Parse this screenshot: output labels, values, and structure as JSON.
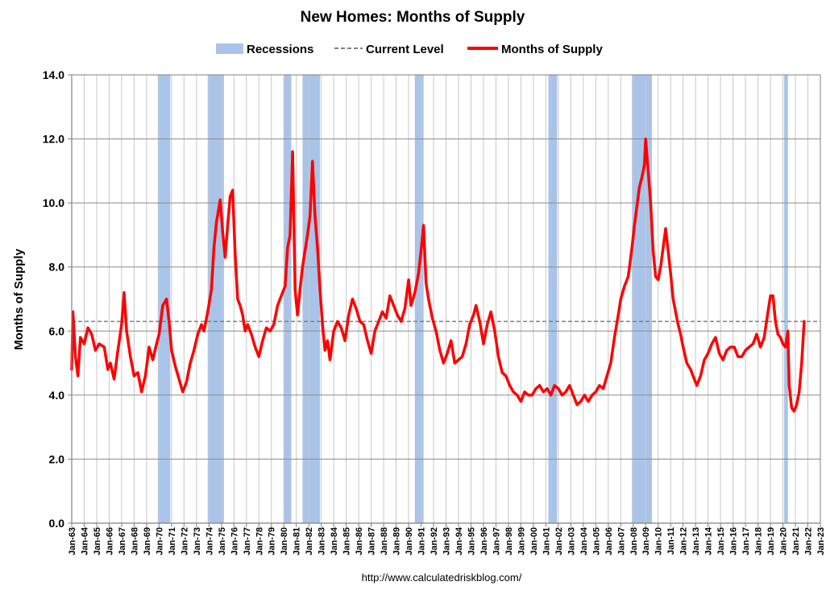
{
  "chart_data": {
    "type": "line",
    "title": "New Homes: Months of Supply",
    "ylabel": "Months of Supply",
    "xlabel": "",
    "source": "http://www.calculatedriskblog.com/",
    "ylim": [
      0,
      14
    ],
    "yticks": [
      "0.0",
      "2.0",
      "4.0",
      "6.0",
      "8.0",
      "10.0",
      "12.0",
      "14.0"
    ],
    "xlim": [
      1963,
      2023
    ],
    "x_tick_labels": [
      "Jan-63",
      "Jan-64",
      "Jan-65",
      "Jan-66",
      "Jan-67",
      "Jan-68",
      "Jan-69",
      "Jan-70",
      "Jan-71",
      "Jan-72",
      "Jan-73",
      "Jan-74",
      "Jan-75",
      "Jan-76",
      "Jan-77",
      "Jan-78",
      "Jan-79",
      "Jan-80",
      "Jan-81",
      "Jan-82",
      "Jan-83",
      "Jan-84",
      "Jan-85",
      "Jan-86",
      "Jan-87",
      "Jan-88",
      "Jan-89",
      "Jan-90",
      "Jan-91",
      "Jan-92",
      "Jan-93",
      "Jan-94",
      "Jan-95",
      "Jan-96",
      "Jan-97",
      "Jan-98",
      "Jan-99",
      "Jan-00",
      "Jan-01",
      "Jan-02",
      "Jan-03",
      "Jan-04",
      "Jan-05",
      "Jan-06",
      "Jan-07",
      "Jan-08",
      "Jan-09",
      "Jan-10",
      "Jan-11",
      "Jan-12",
      "Jan-13",
      "Jan-14",
      "Jan-15",
      "Jan-16",
      "Jan-17",
      "Jan-18",
      "Jan-19",
      "Jan-20",
      "Jan-21",
      "Jan-22",
      "Jan-23"
    ],
    "grid": true,
    "legend": {
      "placement": "top-center",
      "items": [
        {
          "label": "Recessions",
          "kind": "band",
          "color": "#a9c4e8"
        },
        {
          "label": "Current Level",
          "kind": "dashed",
          "color": "#808080"
        },
        {
          "label": "Months of Supply",
          "kind": "line",
          "color": "#ff0000"
        }
      ]
    },
    "current_level": 6.3,
    "recessions": [
      [
        1969.9,
        1970.9
      ],
      [
        1973.9,
        1975.2
      ],
      [
        1980.0,
        1980.6
      ],
      [
        1981.5,
        1982.9
      ],
      [
        1990.5,
        1991.2
      ],
      [
        2001.2,
        2001.9
      ],
      [
        2007.9,
        2009.5
      ],
      [
        2020.1,
        2020.4
      ]
    ],
    "series": [
      {
        "name": "Months of Supply",
        "color": "#ff0000",
        "points": [
          [
            1963.0,
            4.8
          ],
          [
            1963.1,
            6.6
          ],
          [
            1963.3,
            5.2
          ],
          [
            1963.5,
            4.6
          ],
          [
            1963.7,
            5.8
          ],
          [
            1964.0,
            5.6
          ],
          [
            1964.3,
            6.1
          ],
          [
            1964.6,
            5.9
          ],
          [
            1964.9,
            5.4
          ],
          [
            1965.2,
            5.6
          ],
          [
            1965.6,
            5.5
          ],
          [
            1965.9,
            4.8
          ],
          [
            1966.1,
            5.0
          ],
          [
            1966.4,
            4.5
          ],
          [
            1966.7,
            5.4
          ],
          [
            1967.0,
            6.2
          ],
          [
            1967.2,
            7.2
          ],
          [
            1967.4,
            6.0
          ],
          [
            1967.7,
            5.2
          ],
          [
            1968.0,
            4.6
          ],
          [
            1968.3,
            4.7
          ],
          [
            1968.6,
            4.1
          ],
          [
            1968.9,
            4.6
          ],
          [
            1969.2,
            5.5
          ],
          [
            1969.5,
            5.1
          ],
          [
            1969.8,
            5.6
          ],
          [
            1970.0,
            5.9
          ],
          [
            1970.3,
            6.8
          ],
          [
            1970.6,
            7.0
          ],
          [
            1970.8,
            6.3
          ],
          [
            1971.0,
            5.4
          ],
          [
            1971.3,
            4.9
          ],
          [
            1971.6,
            4.5
          ],
          [
            1971.9,
            4.1
          ],
          [
            1972.2,
            4.4
          ],
          [
            1972.5,
            5.0
          ],
          [
            1972.8,
            5.4
          ],
          [
            1973.1,
            5.9
          ],
          [
            1973.4,
            6.2
          ],
          [
            1973.6,
            6.0
          ],
          [
            1973.9,
            6.6
          ],
          [
            1974.2,
            7.3
          ],
          [
            1974.4,
            8.6
          ],
          [
            1974.6,
            9.4
          ],
          [
            1974.9,
            10.1
          ],
          [
            1975.1,
            9.1
          ],
          [
            1975.3,
            8.3
          ],
          [
            1975.5,
            9.3
          ],
          [
            1975.7,
            10.2
          ],
          [
            1975.9,
            10.4
          ],
          [
            1976.1,
            8.4
          ],
          [
            1976.3,
            7.0
          ],
          [
            1976.5,
            6.8
          ],
          [
            1976.7,
            6.5
          ],
          [
            1976.9,
            6.0
          ],
          [
            1977.1,
            6.2
          ],
          [
            1977.4,
            5.9
          ],
          [
            1977.7,
            5.5
          ],
          [
            1978.0,
            5.2
          ],
          [
            1978.3,
            5.7
          ],
          [
            1978.6,
            6.1
          ],
          [
            1978.9,
            6.0
          ],
          [
            1979.2,
            6.2
          ],
          [
            1979.5,
            6.8
          ],
          [
            1979.8,
            7.1
          ],
          [
            1980.1,
            7.4
          ],
          [
            1980.3,
            8.6
          ],
          [
            1980.5,
            9.0
          ],
          [
            1980.7,
            11.6
          ],
          [
            1980.9,
            7.3
          ],
          [
            1981.1,
            6.5
          ],
          [
            1981.3,
            7.3
          ],
          [
            1981.5,
            8.0
          ],
          [
            1981.7,
            8.5
          ],
          [
            1981.9,
            9.0
          ],
          [
            1982.1,
            9.6
          ],
          [
            1982.3,
            11.3
          ],
          [
            1982.5,
            9.6
          ],
          [
            1982.7,
            8.6
          ],
          [
            1982.9,
            7.3
          ],
          [
            1983.1,
            6.2
          ],
          [
            1983.3,
            5.4
          ],
          [
            1983.5,
            5.7
          ],
          [
            1983.7,
            5.1
          ],
          [
            1984.0,
            6.0
          ],
          [
            1984.3,
            6.3
          ],
          [
            1984.6,
            6.1
          ],
          [
            1984.9,
            5.7
          ],
          [
            1985.2,
            6.5
          ],
          [
            1985.5,
            7.0
          ],
          [
            1985.8,
            6.7
          ],
          [
            1986.1,
            6.3
          ],
          [
            1986.4,
            6.2
          ],
          [
            1986.7,
            5.7
          ],
          [
            1987.0,
            5.3
          ],
          [
            1987.3,
            6.0
          ],
          [
            1987.6,
            6.3
          ],
          [
            1987.9,
            6.6
          ],
          [
            1988.2,
            6.4
          ],
          [
            1988.5,
            7.1
          ],
          [
            1988.8,
            6.8
          ],
          [
            1989.1,
            6.5
          ],
          [
            1989.4,
            6.3
          ],
          [
            1989.7,
            6.7
          ],
          [
            1990.0,
            7.6
          ],
          [
            1990.2,
            6.8
          ],
          [
            1990.5,
            7.2
          ],
          [
            1990.8,
            7.8
          ],
          [
            1991.0,
            8.5
          ],
          [
            1991.2,
            9.3
          ],
          [
            1991.4,
            7.5
          ],
          [
            1991.6,
            7.0
          ],
          [
            1991.9,
            6.4
          ],
          [
            1992.2,
            6.0
          ],
          [
            1992.5,
            5.4
          ],
          [
            1992.8,
            5.0
          ],
          [
            1993.1,
            5.3
          ],
          [
            1993.4,
            5.7
          ],
          [
            1993.7,
            5.0
          ],
          [
            1994.0,
            5.1
          ],
          [
            1994.3,
            5.2
          ],
          [
            1994.6,
            5.6
          ],
          [
            1994.9,
            6.2
          ],
          [
            1995.2,
            6.5
          ],
          [
            1995.4,
            6.8
          ],
          [
            1995.7,
            6.3
          ],
          [
            1996.0,
            5.6
          ],
          [
            1996.3,
            6.2
          ],
          [
            1996.6,
            6.6
          ],
          [
            1996.9,
            6.0
          ],
          [
            1997.2,
            5.2
          ],
          [
            1997.5,
            4.7
          ],
          [
            1997.8,
            4.6
          ],
          [
            1998.1,
            4.3
          ],
          [
            1998.4,
            4.1
          ],
          [
            1998.7,
            4.0
          ],
          [
            1999.0,
            3.8
          ],
          [
            1999.3,
            4.1
          ],
          [
            1999.6,
            4.0
          ],
          [
            1999.9,
            4.0
          ],
          [
            2000.2,
            4.2
          ],
          [
            2000.5,
            4.3
          ],
          [
            2000.8,
            4.1
          ],
          [
            2001.1,
            4.2
          ],
          [
            2001.4,
            4.0
          ],
          [
            2001.7,
            4.3
          ],
          [
            2002.0,
            4.2
          ],
          [
            2002.3,
            4.0
          ],
          [
            2002.6,
            4.1
          ],
          [
            2002.9,
            4.3
          ],
          [
            2003.2,
            4.0
          ],
          [
            2003.5,
            3.7
          ],
          [
            2003.8,
            3.8
          ],
          [
            2004.1,
            4.0
          ],
          [
            2004.4,
            3.8
          ],
          [
            2004.7,
            4.0
          ],
          [
            2005.0,
            4.1
          ],
          [
            2005.3,
            4.3
          ],
          [
            2005.6,
            4.2
          ],
          [
            2005.9,
            4.6
          ],
          [
            2006.2,
            5.0
          ],
          [
            2006.5,
            5.8
          ],
          [
            2006.8,
            6.5
          ],
          [
            2007.0,
            7.0
          ],
          [
            2007.3,
            7.4
          ],
          [
            2007.6,
            7.7
          ],
          [
            2007.9,
            8.6
          ],
          [
            2008.1,
            9.3
          ],
          [
            2008.3,
            9.9
          ],
          [
            2008.5,
            10.5
          ],
          [
            2008.7,
            10.8
          ],
          [
            2008.9,
            11.2
          ],
          [
            2009.0,
            12.0
          ],
          [
            2009.2,
            11.0
          ],
          [
            2009.4,
            10.0
          ],
          [
            2009.6,
            8.5
          ],
          [
            2009.8,
            7.7
          ],
          [
            2010.0,
            7.6
          ],
          [
            2010.2,
            8.0
          ],
          [
            2010.4,
            8.6
          ],
          [
            2010.6,
            9.2
          ],
          [
            2010.8,
            8.5
          ],
          [
            2011.0,
            7.8
          ],
          [
            2011.2,
            7.0
          ],
          [
            2011.4,
            6.6
          ],
          [
            2011.6,
            6.2
          ],
          [
            2011.8,
            5.9
          ],
          [
            2012.0,
            5.5
          ],
          [
            2012.3,
            5.0
          ],
          [
            2012.6,
            4.8
          ],
          [
            2012.9,
            4.5
          ],
          [
            2013.1,
            4.3
          ],
          [
            2013.4,
            4.6
          ],
          [
            2013.7,
            5.1
          ],
          [
            2014.0,
            5.3
          ],
          [
            2014.3,
            5.6
          ],
          [
            2014.6,
            5.8
          ],
          [
            2014.9,
            5.3
          ],
          [
            2015.2,
            5.1
          ],
          [
            2015.5,
            5.4
          ],
          [
            2015.8,
            5.5
          ],
          [
            2016.1,
            5.5
          ],
          [
            2016.4,
            5.2
          ],
          [
            2016.7,
            5.2
          ],
          [
            2017.0,
            5.4
          ],
          [
            2017.3,
            5.5
          ],
          [
            2017.6,
            5.6
          ],
          [
            2017.9,
            5.9
          ],
          [
            2018.2,
            5.5
          ],
          [
            2018.5,
            5.8
          ],
          [
            2018.8,
            6.6
          ],
          [
            2019.0,
            7.1
          ],
          [
            2019.2,
            7.1
          ],
          [
            2019.4,
            6.3
          ],
          [
            2019.6,
            5.9
          ],
          [
            2019.8,
            5.8
          ],
          [
            2020.0,
            5.6
          ],
          [
            2020.2,
            5.5
          ],
          [
            2020.4,
            6.0
          ],
          [
            2020.5,
            4.3
          ],
          [
            2020.7,
            3.6
          ],
          [
            2020.9,
            3.5
          ],
          [
            2021.1,
            3.7
          ],
          [
            2021.3,
            4.1
          ],
          [
            2021.5,
            5.0
          ],
          [
            2021.7,
            6.3
          ]
        ]
      }
    ]
  }
}
